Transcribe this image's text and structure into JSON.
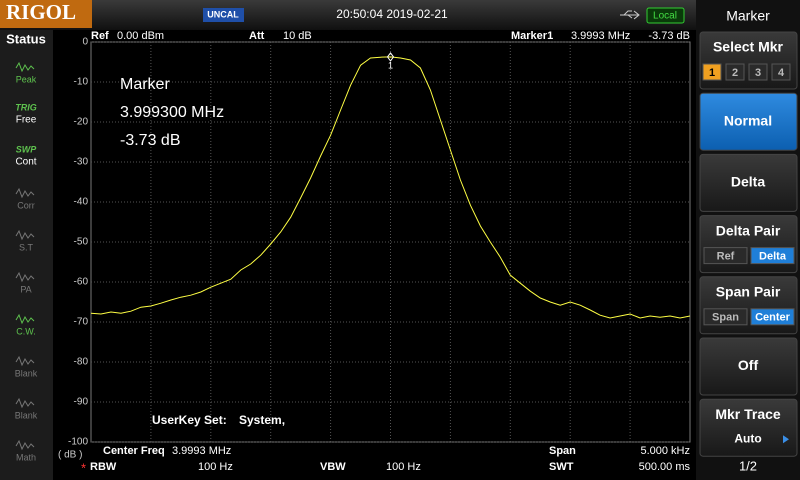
{
  "header": {
    "logo": "RIGOL",
    "uncal": "UNCAL",
    "datetime": "20:50:04 2019-02-21",
    "local": "Local"
  },
  "status": {
    "title": "Status",
    "items": [
      {
        "label": "Peak",
        "active": true
      },
      {
        "top": "TRIG",
        "label": "Free",
        "active": true
      },
      {
        "top": "SWP",
        "label": "Cont",
        "active": true
      },
      {
        "label": "Corr",
        "active": false
      },
      {
        "label": "S.T",
        "active": false
      },
      {
        "label": "PA",
        "active": false
      },
      {
        "label": "C.W.",
        "active": true
      },
      {
        "label": "Blank",
        "active": false
      },
      {
        "label": "Blank",
        "active": false
      },
      {
        "label": "Math",
        "active": false
      }
    ]
  },
  "info": {
    "ref": "Ref",
    "ref_value": "0.00 dBm",
    "att": "Att",
    "att_value": "10 dB",
    "marker": "Marker1",
    "marker_freq": "3.9993 MHz",
    "marker_level": "-3.73 dB",
    "center": "Center Freq",
    "center_value": "3.9993 MHz",
    "span": "Span",
    "span_value": "5.000 kHz",
    "rbw_flag": "*",
    "rbw": "RBW",
    "rbw_value": "100 Hz",
    "vbw": "VBW",
    "vbw_value": "100 Hz",
    "swt": "SWT",
    "swt_value": "500.00 ms"
  },
  "chart_data": {
    "type": "line",
    "color": "#ffff44",
    "y_unit": "( dB )",
    "annotations": [
      "Marker",
      "3.999300 MHz",
      "-3.73 dB"
    ],
    "marker_label": "1",
    "marker_index": 30,
    "user_key": [
      "UserKey Set:",
      "System,"
    ],
    "ylim": [
      -100,
      0
    ],
    "yticks": [
      0,
      -10,
      -20,
      -30,
      -40,
      -50,
      -60,
      -70,
      -80,
      -90,
      -100
    ],
    "grid": true,
    "values": [
      -67.8,
      -68,
      -67.5,
      -67.8,
      -67.3,
      -66.3,
      -66,
      -65.3,
      -64.5,
      -63.8,
      -63.3,
      -62.5,
      -61.3,
      -60.3,
      -59.3,
      -57,
      -55.5,
      -53.3,
      -50.5,
      -47.5,
      -43.8,
      -39,
      -34,
      -28.5,
      -23.3,
      -17,
      -10.8,
      -5.8,
      -4,
      -3.8,
      -3.73,
      -4,
      -4.5,
      -6.5,
      -12,
      -19.5,
      -27,
      -34.5,
      -40.8,
      -46,
      -50,
      -53.8,
      -58.3,
      -60.3,
      -62.3,
      -64,
      -65,
      -65.8,
      -65,
      -65.8,
      -67,
      -68.3,
      -69,
      -68.5,
      -68,
      -69,
      -68.5,
      -68.8,
      -68.5,
      -69,
      -68.5
    ]
  },
  "menu": {
    "title": "Marker",
    "items": [
      {
        "label": "Select Mkr",
        "options": [
          "1",
          "2",
          "3",
          "4"
        ],
        "selected": 0
      },
      {
        "label": "Normal",
        "active": true
      },
      {
        "label": "Delta"
      },
      {
        "label": "Delta Pair",
        "options": [
          "Ref",
          "Delta"
        ],
        "selected": 1
      },
      {
        "label": "Span Pair",
        "options": [
          "Span",
          "Center"
        ],
        "selected": 1
      },
      {
        "label": "Off"
      },
      {
        "label": "Mkr Trace",
        "sub": "Auto"
      }
    ],
    "page": "1/2"
  }
}
